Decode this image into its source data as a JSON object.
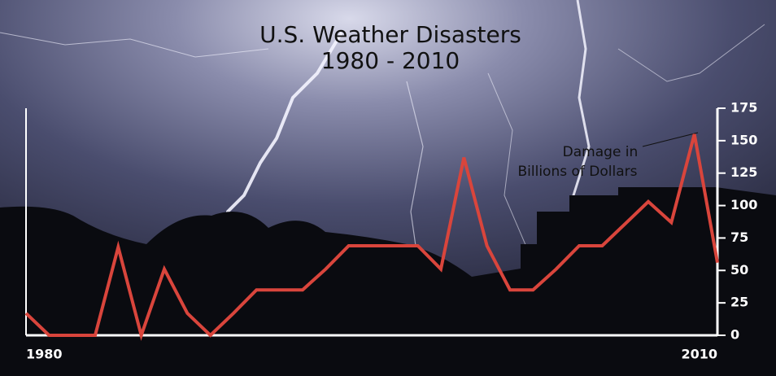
{
  "chart_data": {
    "type": "line",
    "title": "U.S. Weather Disasters",
    "subtitle": "1980 - 2010",
    "annotation": [
      "Damage in",
      "Billions of Dollars"
    ],
    "x": [
      1980,
      1981,
      1982,
      1983,
      1984,
      1985,
      1986,
      1987,
      1988,
      1989,
      1990,
      1991,
      1992,
      1993,
      1994,
      1995,
      1996,
      1997,
      1998,
      1999,
      2000,
      2001,
      2002,
      2003,
      2004,
      2005,
      2006,
      2007,
      2008,
      2009,
      2010
    ],
    "values": [
      17,
      0,
      0,
      0,
      68,
      0,
      51,
      17,
      0,
      17,
      35,
      35,
      35,
      51,
      69,
      69,
      69,
      69,
      51,
      137,
      69,
      35,
      35,
      51,
      69,
      69,
      86,
      103,
      87,
      155,
      56
    ],
    "color": "#d9453c",
    "xlim": [
      1980,
      2010
    ],
    "xticks": [
      1980,
      2010
    ],
    "ylim": [
      0,
      175
    ],
    "yticks": [
      0,
      25,
      50,
      75,
      100,
      125,
      150,
      175
    ]
  }
}
